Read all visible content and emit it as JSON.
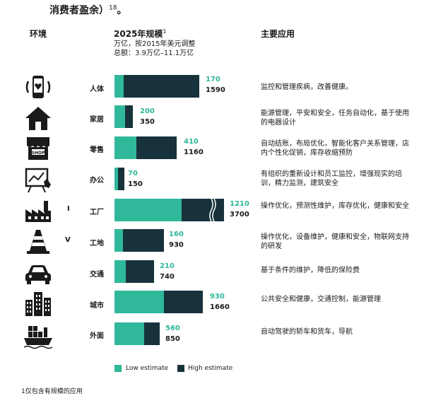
{
  "top_text": "消费者盈余）",
  "top_text_sup": "18",
  "top_text_end": "。",
  "headers": {
    "environment": "环境",
    "scale": "2025年规模",
    "scale_sup": "1",
    "scale_unit": "万亿，按2015年美元调整",
    "scale_total": "总额：3.9万亿–11.1万亿",
    "applications": "主要应用"
  },
  "side_marks": [
    "I",
    "V"
  ],
  "legend": {
    "low": "Low estimate",
    "high": "High estimate"
  },
  "footnote": "1仅包含有规模的应用",
  "colors": {
    "low": "#2fb89a",
    "high": "#17323a",
    "icon": "#1a1a1a"
  },
  "chart_data": {
    "type": "bar",
    "orientation": "horizontal-stacked",
    "axis_break_category": "工厂",
    "series": [
      {
        "name": "Low estimate",
        "values": [
          170,
          200,
          410,
          70,
          1210,
          160,
          210,
          930,
          560
        ]
      },
      {
        "name": "High estimate",
        "values": [
          1590,
          350,
          1160,
          150,
          3700,
          930,
          740,
          1660,
          850
        ]
      }
    ],
    "rows": [
      {
        "category": "人体",
        "icon": "wearable-heart-icon",
        "low": 170,
        "high": 1590,
        "low_label": "170",
        "high_label": "1590",
        "application": "监控和管理疾病，改善健康。"
      },
      {
        "category": "家居",
        "icon": "house-icon",
        "low": 200,
        "high": 350,
        "low_label": "200",
        "high_label": "350",
        "application": "能源管理，平安和安全，任务自动化，基于使用的电器设计"
      },
      {
        "category": "零售",
        "icon": "shop-icon",
        "low": 410,
        "high": 1160,
        "low_label": "410",
        "high_label": "1160",
        "application": "自动结账，布局优化，智能化客户关系管理，店内个性化促销，库存收缩预防"
      },
      {
        "category": "办公",
        "icon": "presentation-board-icon",
        "low": 70,
        "high": 150,
        "low_label": "70",
        "high_label": "150",
        "application": "有组织的重新设计和员工监控，增强现实的培训，精力监测，建筑安全"
      },
      {
        "category": "工厂",
        "icon": "factory-icon",
        "low": 1210,
        "high": 3700,
        "low_label": "1210",
        "high_label": "3700",
        "application": "操作优化，预测性维护，库存优化，健康和安全"
      },
      {
        "category": "工地",
        "icon": "traffic-cone-icon",
        "low": 160,
        "high": 930,
        "low_label": "160",
        "high_label": "930",
        "application": "操作优化，设备维护，健康和安全，物联网支持的研发"
      },
      {
        "category": "交通",
        "icon": "car-icon",
        "low": 210,
        "high": 740,
        "low_label": "210",
        "high_label": "740",
        "application": "基于条件的维护，降低的保险费"
      },
      {
        "category": "城市",
        "icon": "city-buildings-icon",
        "low": 930,
        "high": 1660,
        "low_label": "930",
        "high_label": "1660",
        "application": "公共安全和健康，交通控制，能源管理"
      },
      {
        "category": "外面",
        "icon": "cargo-ship-icon",
        "low": 560,
        "high": 850,
        "low_label": "560",
        "high_label": "850",
        "application": "自动驾驶的轿车和货车，导航"
      }
    ]
  }
}
